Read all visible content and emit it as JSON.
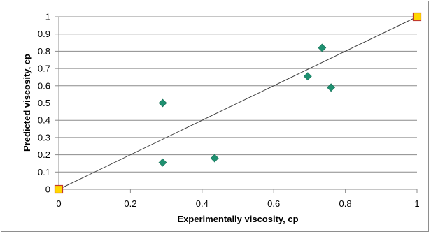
{
  "chart_data": {
    "type": "scatter",
    "title": "",
    "xlabel": "Experimentally viscosity, cp",
    "ylabel": "Predicted viscosity, cp",
    "xlim": [
      0,
      1
    ],
    "ylim": [
      0,
      1
    ],
    "x_ticks": [
      "0",
      "0.2",
      "0.4",
      "0.6",
      "0.8",
      "1"
    ],
    "y_ticks": [
      "0",
      "0.1",
      "0.2",
      "0.3",
      "0.4",
      "0.5",
      "0.6",
      "0.7",
      "0.8",
      "0.9",
      "1"
    ],
    "grid": "horizontal",
    "legend": "none",
    "series": [
      {
        "marker": "diamond",
        "color": "#1e9070",
        "points": [
          {
            "x": 0.29,
            "y": 0.5
          },
          {
            "x": 0.29,
            "y": 0.155
          },
          {
            "x": 0.435,
            "y": 0.18
          },
          {
            "x": 0.695,
            "y": 0.655
          },
          {
            "x": 0.735,
            "y": 0.82
          },
          {
            "x": 0.76,
            "y": 0.59
          }
        ]
      },
      {
        "marker": "square",
        "color": "#ffd700",
        "edge_color": "#c0392b",
        "connect": true,
        "line_color": "#404040",
        "points": [
          {
            "x": 0,
            "y": 0
          },
          {
            "x": 1,
            "y": 1
          }
        ]
      }
    ]
  }
}
